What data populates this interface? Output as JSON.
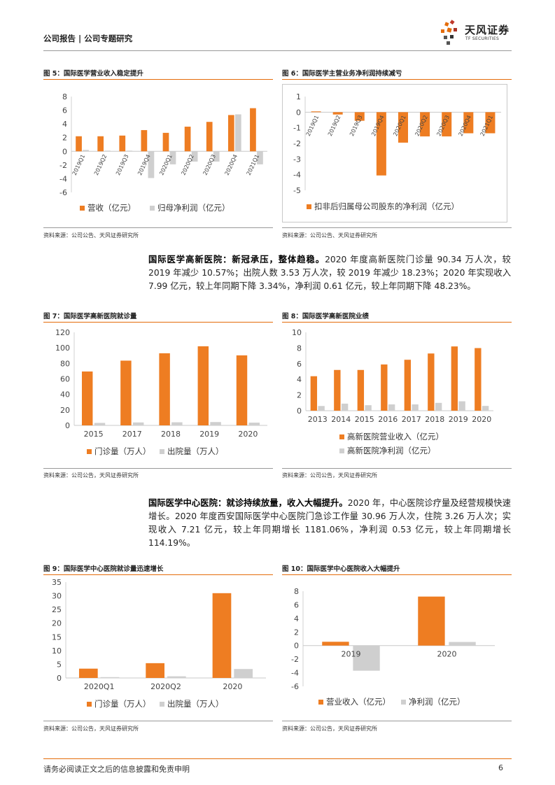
{
  "header": {
    "section": "公司报告 | 公司专题研究",
    "logo_cn": "天风证券",
    "logo_en": "TF SECURITIES"
  },
  "footer": {
    "disclaimer": "请务必阅读正文之后的信息披露和免责申明",
    "page_number": "6"
  },
  "colors": {
    "orange": "#ee7d22",
    "gray": "#cfcfcf",
    "accent": "#e46c0a"
  },
  "source_text": "资料来源：公司公告、天风证券研究所",
  "source_text_alt": "资料来源：公司公告，天风证券研究所",
  "paragraphs": {
    "p1_bold": "国际医学高新医院：新冠承压，整体趋稳。",
    "p1_text": "2020 年度高新医院门诊量 90.34 万人次，较 2019 年减少 10.57%；出院人数 3.53 万人次，较 2019 年减少 18.23%；2020 年实现收入 7.99 亿元，较上年同期下降 3.34%，净利润 0.61 亿元，较上年同期下降 48.23%。",
    "p2_bold": "国际医学中心医院：就诊持续放量，收入大幅提升。",
    "p2_text": "2020 年，中心医院诊疗量及经营规模快速增长。2020 年度西安国际医学中心医院门急诊工作量 30.96 万人次，住院 3.26 万人次；实现收入 7.21 亿元，较上年同期增长 1181.06%，净利润 0.53 亿元，较上年同期增长 114.19%。"
  },
  "figures": {
    "fig5": {
      "title": "图 5：国际医学营业收入稳定提升"
    },
    "fig6": {
      "title": "图 6：国际医学主营业务净利润持续减亏"
    },
    "fig7": {
      "title": "图 7：国际医学高新医院就诊量"
    },
    "fig8": {
      "title": "图 8：国际医学高新医院业绩"
    },
    "fig9": {
      "title": "图 9：国际医学中心医院就诊量迅速增长"
    },
    "fig10": {
      "title": "图 10：国际医学中心医院收入大幅提升"
    }
  },
  "chart_data": [
    {
      "id": "fig5",
      "type": "bar",
      "categories": [
        "2019Q1",
        "2019Q2",
        "2019Q3",
        "2019Q4",
        "2020Q1",
        "2020Q2",
        "2020Q3",
        "2020Q4",
        "2021Q1"
      ],
      "series": [
        {
          "name": "营收（亿元）",
          "values": [
            2.2,
            2.2,
            2.3,
            3.1,
            2.7,
            3.6,
            4.3,
            5.3,
            6.3
          ]
        },
        {
          "name": "归母净利润（亿元）",
          "values": [
            0.2,
            0.1,
            0.1,
            -3.9,
            -1.9,
            -1.5,
            -1.5,
            5.4,
            -1.9
          ]
        }
      ],
      "ylim": [
        -6,
        8
      ],
      "yticks": [
        -6,
        -4,
        -2,
        0,
        2,
        4,
        6,
        8
      ],
      "legend": "bottom"
    },
    {
      "id": "fig6",
      "type": "bar",
      "categories": [
        "2019Q1",
        "2019Q2",
        "2019Q3",
        "2019Q4",
        "2020Q1",
        "2020Q2",
        "2020Q3",
        "2020Q4",
        "2021Q1"
      ],
      "series": [
        {
          "name": "扣非后归属母公司股东的净利润（亿元）",
          "values": [
            0.05,
            -0.15,
            -0.55,
            -4.05,
            -1.95,
            -1.55,
            -1.55,
            -1.35,
            -1.35
          ]
        }
      ],
      "ylim": [
        -5,
        1
      ],
      "yticks": [
        -5,
        -4,
        -3,
        -2,
        -1,
        0,
        1
      ],
      "legend": "bottom"
    },
    {
      "id": "fig7",
      "type": "bar",
      "categories": [
        "2015",
        "2017",
        "2018",
        "2019",
        "2020"
      ],
      "series": [
        {
          "name": "门诊量（万人）",
          "values": [
            69.5,
            83.5,
            93,
            102,
            90.3
          ]
        },
        {
          "name": "出院量（万人）",
          "values": [
            3.2,
            3.8,
            4.0,
            4.3,
            3.5
          ]
        }
      ],
      "ylim": [
        0,
        120
      ],
      "yticks": [
        0,
        20,
        40,
        60,
        80,
        100,
        120
      ],
      "legend": "bottom"
    },
    {
      "id": "fig8",
      "type": "bar",
      "categories": [
        "2013",
        "2014",
        "2015",
        "2016",
        "2017",
        "2018",
        "2019",
        "2020"
      ],
      "series": [
        {
          "name": "高新医院营业收入（亿元）",
          "values": [
            4.4,
            5.2,
            5.2,
            5.9,
            6.5,
            7.3,
            8.2,
            7.99
          ]
        },
        {
          "name": "高新医院净利润（亿元）",
          "values": [
            0.6,
            0.9,
            0.7,
            0.8,
            0.8,
            1.0,
            1.2,
            0.61
          ]
        }
      ],
      "ylim": [
        0,
        10
      ],
      "yticks": [
        0,
        2,
        4,
        6,
        8,
        10
      ],
      "legend": "bottom"
    },
    {
      "id": "fig9",
      "type": "bar",
      "categories": [
        "2020Q1",
        "2020Q2",
        "2020"
      ],
      "series": [
        {
          "name": "门诊量（万人）",
          "values": [
            3.4,
            5.4,
            30.96
          ]
        },
        {
          "name": "出院量（万人）",
          "values": [
            0.3,
            0.6,
            3.26
          ]
        }
      ],
      "ylim": [
        0,
        35
      ],
      "yticks": [
        0,
        5,
        10,
        15,
        20,
        25,
        30,
        35
      ],
      "legend": "bottom"
    },
    {
      "id": "fig10",
      "type": "bar",
      "categories": [
        "2019",
        "2020"
      ],
      "series": [
        {
          "name": "营业收入（亿元）",
          "values": [
            0.56,
            7.21
          ]
        },
        {
          "name": "净利润（亿元）",
          "values": [
            -3.7,
            0.53
          ]
        }
      ],
      "ylim": [
        -6,
        8
      ],
      "yticks": [
        -6,
        -4,
        -2,
        0,
        2,
        4,
        6,
        8
      ],
      "legend": "bottom"
    }
  ]
}
